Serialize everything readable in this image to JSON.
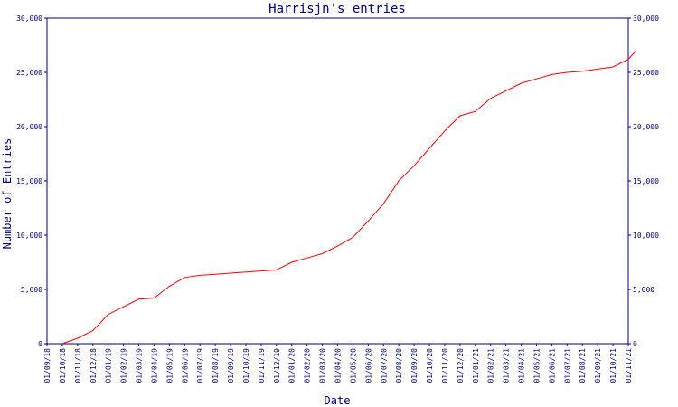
{
  "chart_data": {
    "type": "line",
    "title": "Harrisjn's entries",
    "xlabel": "Date",
    "ylabel": "Number of Entries",
    "ylim": [
      0,
      30000
    ],
    "yticks": [
      0,
      5000,
      10000,
      15000,
      20000,
      25000,
      30000
    ],
    "ytick_labels": [
      "0",
      "5,000",
      "10,000",
      "15,000",
      "20,000",
      "25,000",
      "30,000"
    ],
    "right_axis": true,
    "grid": false,
    "line_color": "#ff0000",
    "axis_color": "#000080",
    "categories": [
      "01/09/18",
      "01/10/18",
      "01/11/18",
      "01/12/18",
      "01/01/19",
      "01/02/19",
      "01/03/19",
      "01/04/19",
      "01/05/19",
      "01/06/19",
      "01/07/19",
      "01/08/19",
      "01/09/19",
      "01/10/19",
      "01/11/19",
      "01/12/19",
      "01/01/20",
      "01/02/20",
      "01/03/20",
      "01/04/20",
      "01/05/20",
      "01/06/20",
      "01/07/20",
      "01/08/20",
      "01/09/20",
      "01/10/20",
      "01/11/20",
      "01/12/20",
      "01/01/21",
      "01/02/21",
      "01/03/21",
      "01/04/21",
      "01/05/21",
      "01/06/21",
      "01/07/21",
      "01/08/21",
      "01/09/21",
      "01/10/21",
      "01/11/21"
    ],
    "series": [
      {
        "points": [
          [
            "01/10/18",
            0
          ],
          [
            "01/11/18",
            500
          ],
          [
            "01/12/18",
            1200
          ],
          [
            "01/01/19",
            2700
          ],
          [
            "01/02/19",
            3400
          ],
          [
            "01/03/19",
            4100
          ],
          [
            "01/04/19",
            4200
          ],
          [
            "01/05/19",
            5300
          ],
          [
            "01/06/19",
            6100
          ],
          [
            "01/07/19",
            6300
          ],
          [
            "01/08/19",
            6400
          ],
          [
            "01/09/19",
            6500
          ],
          [
            "01/10/19",
            6600
          ],
          [
            "01/11/19",
            6700
          ],
          [
            "01/12/19",
            6800
          ],
          [
            "01/01/20",
            7500
          ],
          [
            "01/02/20",
            7900
          ],
          [
            "01/03/20",
            8300
          ],
          [
            "01/04/20",
            9000
          ],
          [
            "01/05/20",
            9800
          ],
          [
            "01/06/20",
            11300
          ],
          [
            "01/07/20",
            12900
          ],
          [
            "01/08/20",
            15000
          ],
          [
            "01/09/20",
            16400
          ],
          [
            "01/10/20",
            18000
          ],
          [
            "01/11/20",
            19600
          ],
          [
            "01/12/20",
            21000
          ],
          [
            "01/01/21",
            21400
          ],
          [
            "01/02/21",
            22600
          ],
          [
            "01/03/21",
            23300
          ],
          [
            "01/04/21",
            24000
          ],
          [
            "01/05/21",
            24400
          ],
          [
            "01/06/21",
            24800
          ],
          [
            "01/07/21",
            25000
          ],
          [
            "01/08/21",
            25100
          ],
          [
            "01/09/21",
            25300
          ],
          [
            "01/10/21",
            25500
          ],
          [
            "01/11/21",
            26200
          ],
          [
            "01/11/21+",
            27000
          ]
        ]
      }
    ]
  }
}
